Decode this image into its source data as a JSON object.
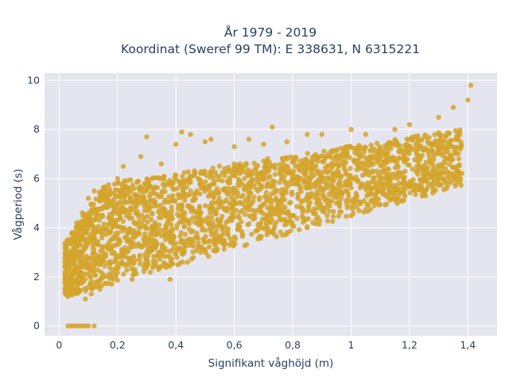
{
  "chart_data": {
    "type": "scatter",
    "title_lines": [
      "År 1979 - 2019",
      "Koordinat (Sweref 99 TM): E 338631, N 6315221"
    ],
    "xlabel": "Signifikant våghöjd (m)",
    "ylabel": "Vågperiod (s)",
    "xlim": [
      -0.05,
      1.5
    ],
    "ylim": [
      -0.4,
      10.3
    ],
    "xticks": [
      0,
      0.2,
      0.4,
      0.6,
      0.8,
      1,
      1.2,
      1.4
    ],
    "xtick_labels": [
      "0",
      "0,2",
      "0,4",
      "0,6",
      "0,8",
      "1",
      "1,2",
      "1,4"
    ],
    "yticks": [
      0,
      2,
      4,
      6,
      8,
      10
    ],
    "ytick_labels": [
      "0",
      "2",
      "4",
      "6",
      "8",
      "10"
    ],
    "grid": true,
    "marker_color": "#d4a52a",
    "background_color": "#e5e5ef",
    "grid_color": "#ffffff",
    "series": [
      {
        "points": [
          [
            0.03,
            0
          ],
          [
            0.04,
            0
          ],
          [
            0.05,
            0
          ],
          [
            0.06,
            0
          ],
          [
            0.07,
            0
          ],
          [
            0.08,
            0
          ],
          [
            0.09,
            0
          ],
          [
            0.1,
            0
          ],
          [
            0.12,
            0
          ],
          [
            0.02,
            2.6
          ],
          [
            0.03,
            1.2
          ],
          [
            0.04,
            1.8
          ],
          [
            0.05,
            3.8
          ],
          [
            0.06,
            4.2
          ],
          [
            0.07,
            2.2
          ],
          [
            0.08,
            4.6
          ],
          [
            0.09,
            1.1
          ],
          [
            0.1,
            5.2
          ],
          [
            0.11,
            1.3
          ],
          [
            0.12,
            5.5
          ],
          [
            0.14,
            1.5
          ],
          [
            0.15,
            5.4
          ],
          [
            0.18,
            1.7
          ],
          [
            0.2,
            6.0
          ],
          [
            0.22,
            6.5
          ],
          [
            0.25,
            1.9
          ],
          [
            0.28,
            6.9
          ],
          [
            0.3,
            7.7
          ],
          [
            0.3,
            2.5
          ],
          [
            0.35,
            6.6
          ],
          [
            0.38,
            1.9
          ],
          [
            0.4,
            7.4
          ],
          [
            0.42,
            7.9
          ],
          [
            0.45,
            7.8
          ],
          [
            0.48,
            3.2
          ],
          [
            0.5,
            7.5
          ],
          [
            0.52,
            7.6
          ],
          [
            0.55,
            3.6
          ],
          [
            0.6,
            7.3
          ],
          [
            0.65,
            7.6
          ],
          [
            0.68,
            3.9
          ],
          [
            0.7,
            7.4
          ],
          [
            0.73,
            8.1
          ],
          [
            0.78,
            7.5
          ],
          [
            0.8,
            4.5
          ],
          [
            0.85,
            7.8
          ],
          [
            0.9,
            7.8
          ],
          [
            0.95,
            5.0
          ],
          [
            1.0,
            8.0
          ],
          [
            1.05,
            7.8
          ],
          [
            1.1,
            5.8
          ],
          [
            1.15,
            8.0
          ],
          [
            1.2,
            8.2
          ],
          [
            1.25,
            6.3
          ],
          [
            1.3,
            8.5
          ],
          [
            1.35,
            8.9
          ],
          [
            1.4,
            9.2
          ],
          [
            1.41,
            9.8
          ]
        ]
      }
    ]
  }
}
